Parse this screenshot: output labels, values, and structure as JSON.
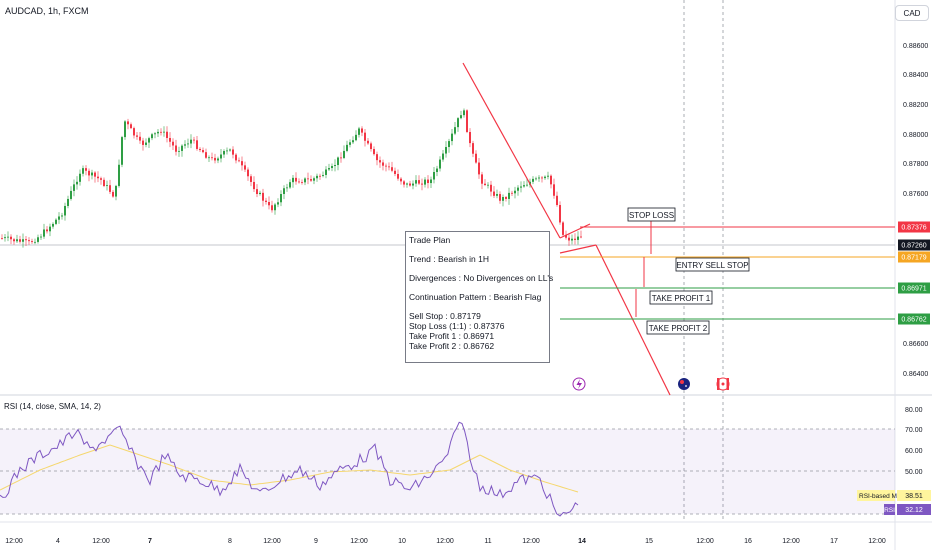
{
  "header": {
    "symbol": "AUDCAD, 1h, FXCM",
    "currency": "CAD"
  },
  "price_axis": {
    "ticks": [
      "0.88600",
      "0.88400",
      "0.88200",
      "0.88000",
      "0.87800",
      "0.87600",
      "0.86600",
      "0.86400"
    ],
    "badges": [
      {
        "label": "0.87376",
        "color": "#f23645"
      },
      {
        "label": "0.87260",
        "color": "#131722"
      },
      {
        "label": "0.87179",
        "color": "#f5a623"
      },
      {
        "label": "0.86971",
        "color": "#2e9e44"
      },
      {
        "label": "0.86762",
        "color": "#2e9e44"
      }
    ]
  },
  "annotations": {
    "stop_loss": "STOP LOSS",
    "entry": "ENTRY SELL STOP",
    "tp1": "TAKE PROFIT 1",
    "tp2": "TAKE PROFIT 2"
  },
  "trade_plan": {
    "title": "Trade Plan",
    "trend": "Trend : Bearish in 1H",
    "divergences": "Divergences : No Divergences on LL's",
    "pattern": "Continuation Pattern : Bearish Flag",
    "sell_stop": "Sell Stop :  0.87179",
    "stop_loss": "Stop Loss (1:1) : 0.87376",
    "tp1": "Take Profit 1 : 0.86971",
    "tp2": "Take Profit 2 : 0.86762"
  },
  "rsi": {
    "header": "RSI (14, close, SMA, 14, 2)",
    "ticks": [
      "80.00",
      "70.00",
      "60.00",
      "50.00"
    ],
    "ma_label": "RSI-based MA",
    "ma_value": "38.51",
    "rsi_label": "RSI",
    "rsi_value": "32.12",
    "line_color": "#7e57c2",
    "ma_color": "#f5d76e"
  },
  "time_axis": {
    "labels": [
      "12:00",
      "4",
      "12:00",
      "7",
      "8",
      "12:00",
      "9",
      "12:00",
      "10",
      "12:00",
      "11",
      "12:00",
      "14",
      "15",
      "12:00",
      "16",
      "12:00",
      "17",
      "12:00"
    ]
  },
  "colors": {
    "up": "#26a69a",
    "green_candle": "#2e9e44",
    "down": "#f23645",
    "entry": "#f5a623"
  }
}
